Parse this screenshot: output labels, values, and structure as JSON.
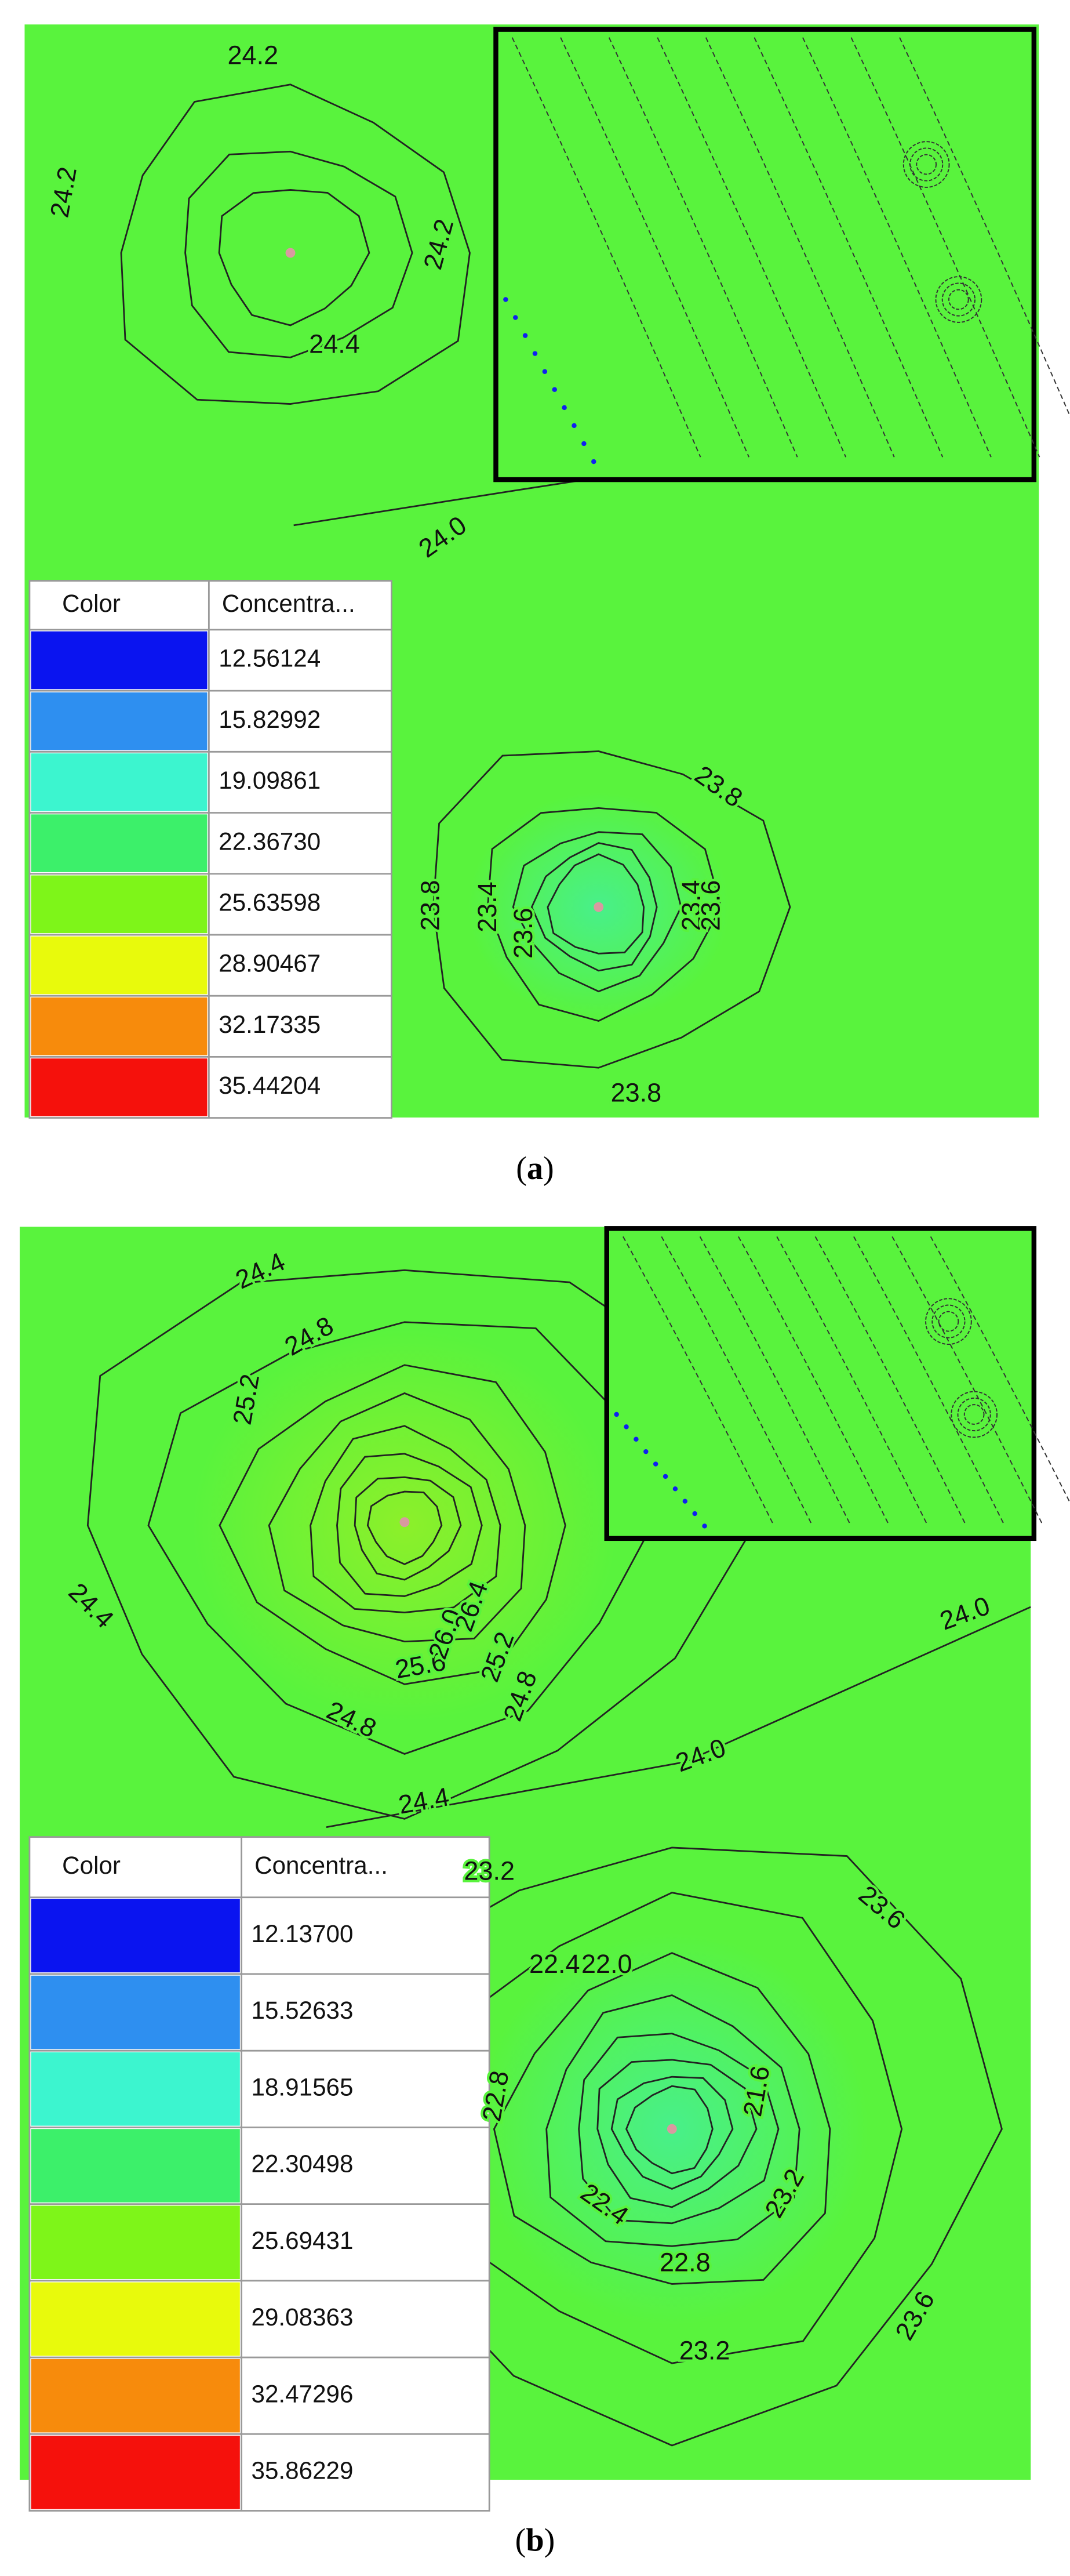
{
  "panels": [
    {
      "caption_label": "a",
      "legend": {
        "header": [
          "Color",
          "Concentra..."
        ],
        "rows": [
          {
            "color": "#0a14f0",
            "value": "12.56124"
          },
          {
            "color": "#2e8ff0",
            "value": "15.82992"
          },
          {
            "color": "#3cf5cf",
            "value": "19.09861"
          },
          {
            "color": "#3cf06a",
            "value": "22.36730"
          },
          {
            "color": "#7ef519",
            "value": "25.63598"
          },
          {
            "color": "#e8fa0c",
            "value": "28.90467"
          },
          {
            "color": "#f78b0c",
            "value": "32.17335"
          },
          {
            "color": "#f5110c",
            "value": "35.44204"
          }
        ]
      },
      "contour_labels": [
        "24.2",
        "24.2",
        "24.2",
        "24.4",
        "24.0",
        "23.8",
        "23.8",
        "23.6",
        "23.4",
        "23.4",
        "23.6",
        "23.8"
      ]
    },
    {
      "caption_label": "b",
      "legend": {
        "header": [
          "Color",
          "Concentra..."
        ],
        "rows": [
          {
            "color": "#0a14f0",
            "value": "12.13700"
          },
          {
            "color": "#2e8ff0",
            "value": "15.52633"
          },
          {
            "color": "#3cf5cf",
            "value": "18.91565"
          },
          {
            "color": "#3cf06a",
            "value": "22.30498"
          },
          {
            "color": "#7ef519",
            "value": "25.69431"
          },
          {
            "color": "#e8fa0c",
            "value": "29.08363"
          },
          {
            "color": "#f78b0c",
            "value": "32.47296"
          },
          {
            "color": "#f5110c",
            "value": "35.86229"
          }
        ]
      },
      "contour_labels": [
        "24.4",
        "24.8",
        "25.2",
        "24.4",
        "24.8",
        "24.4",
        "25.6",
        "26.0",
        "26.4",
        "25.2",
        "24.8",
        "24.0",
        "24.0",
        "23.6",
        "23.2",
        "22.4",
        "22.0",
        "22.8",
        "22.4",
        "21.6",
        "23.2",
        "22.8",
        "23.2",
        "23.6"
      ]
    }
  ]
}
